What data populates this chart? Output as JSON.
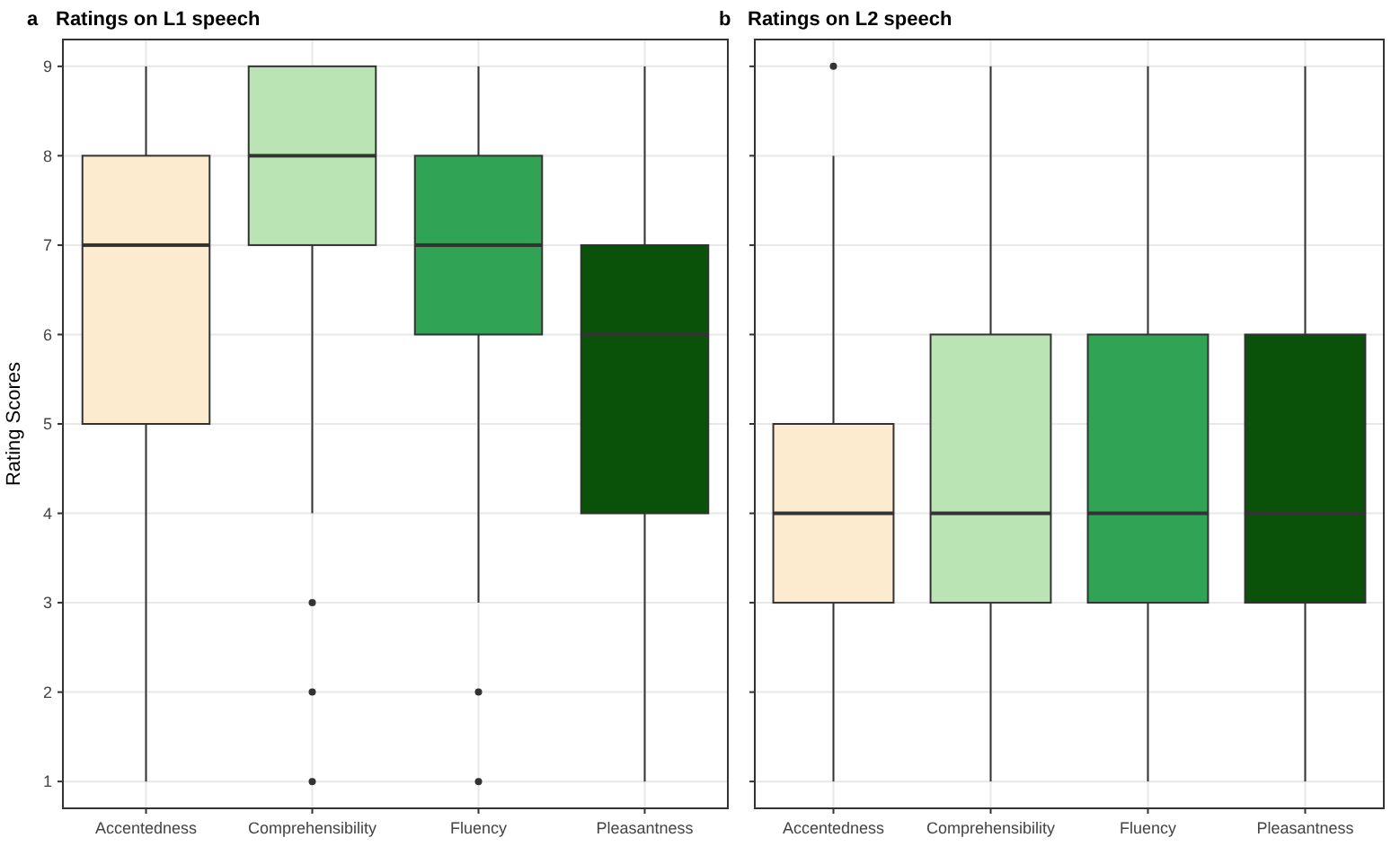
{
  "chart_data": [
    {
      "type": "box",
      "title": "Ratings on L1 speech",
      "annotations": [
        "a"
      ],
      "ylabel": "Rating Scores",
      "categories": [
        "Accentedness",
        "Comprehensibility",
        "Fluency",
        "Pleasantness"
      ],
      "colors": [
        "#fdebd0",
        "#bae4b3",
        "#31a354",
        "#0a520a"
      ],
      "ylim": [
        0.7,
        9.3
      ],
      "yticks": [
        1,
        2,
        3,
        4,
        5,
        6,
        7,
        8,
        9
      ],
      "grid": true,
      "boxes": [
        {
          "low": 1,
          "q1": 5,
          "median": 7,
          "q3": 8,
          "high": 9
        },
        {
          "low": 4,
          "q1": 7,
          "median": 8,
          "q3": 9,
          "high": 9,
          "outliers": [
            3,
            2,
            1
          ]
        },
        {
          "low": 3,
          "q1": 6,
          "median": 7,
          "q3": 8,
          "high": 9,
          "outliers": [
            2,
            1
          ]
        },
        {
          "low": 1,
          "q1": 4,
          "median": 6,
          "q3": 7,
          "high": 9
        }
      ]
    },
    {
      "type": "box",
      "title": "Ratings on L2 speech",
      "annotations": [
        "b"
      ],
      "categories": [
        "Accentedness",
        "Comprehensibility",
        "Fluency",
        "Pleasantness"
      ],
      "colors": [
        "#fdebd0",
        "#bae4b3",
        "#31a354",
        "#0a520a"
      ],
      "ylim": [
        0.7,
        9.3
      ],
      "yticks": [
        1,
        2,
        3,
        4,
        5,
        6,
        7,
        8,
        9
      ],
      "grid": true,
      "tick_labels": "x",
      "boxes": [
        {
          "low": 1,
          "q1": 3,
          "median": 4,
          "q3": 5,
          "high": 8,
          "outliers": [
            9
          ]
        },
        {
          "low": 1,
          "q1": 3,
          "median": 4,
          "q3": 6,
          "high": 9
        },
        {
          "low": 1,
          "q1": 3,
          "median": 4,
          "q3": 6,
          "high": 9
        },
        {
          "low": 1,
          "q1": 3,
          "median": 4,
          "q3": 6,
          "high": 9
        }
      ]
    }
  ]
}
